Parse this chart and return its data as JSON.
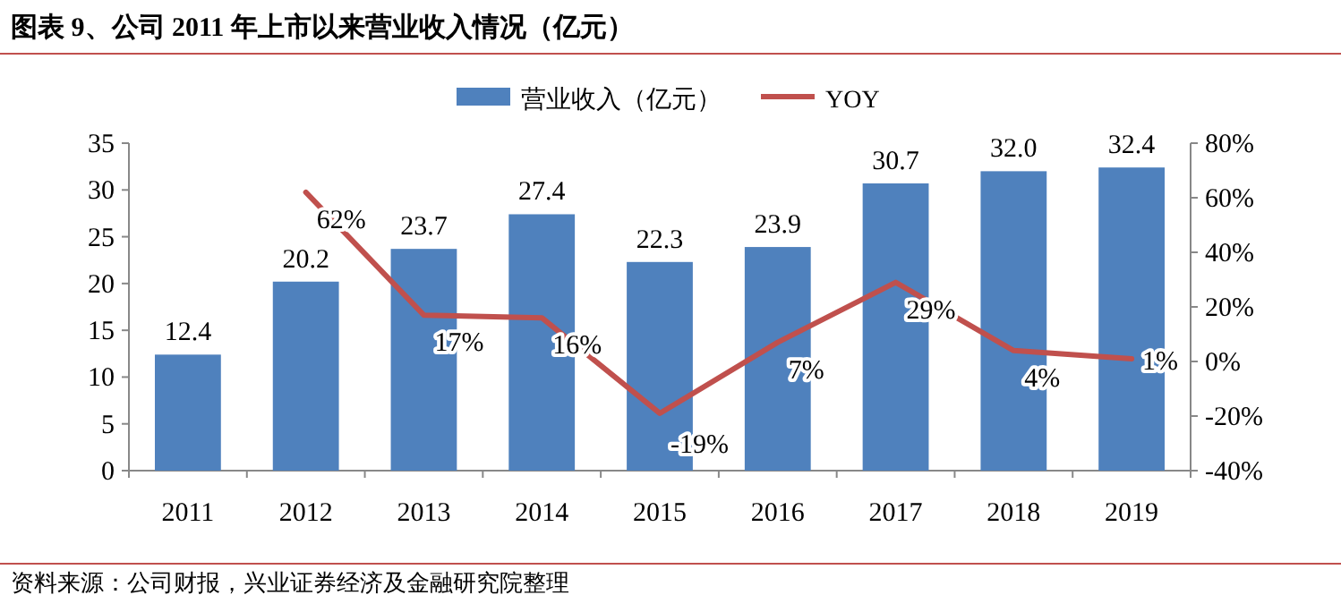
{
  "chart_data": {
    "type": "bar",
    "title": "图表 9、公司 2011 年上市以来营业收入情况（亿元）",
    "categories": [
      "2011",
      "2012",
      "2013",
      "2014",
      "2015",
      "2016",
      "2017",
      "2018",
      "2019"
    ],
    "series": [
      {
        "name": "营业收入（亿元）",
        "color": "#4f81bd",
        "values": [
          12.4,
          20.2,
          23.7,
          27.4,
          22.3,
          23.9,
          30.7,
          32.0,
          32.4
        ],
        "value_labels": [
          "12.4",
          "20.2",
          "23.7",
          "27.4",
          "22.3",
          "23.9",
          "30.7",
          "32.0",
          "32.4"
        ]
      },
      {
        "name": "YOY",
        "type": "line",
        "axis": "y2",
        "color": "#c0504d",
        "values": [
          null,
          62,
          17,
          16,
          -19,
          7,
          29,
          4,
          1
        ],
        "value_labels": [
          null,
          "62%",
          "17%",
          "16%",
          "-19%",
          "7%",
          "29%",
          "4%",
          "1%"
        ]
      }
    ],
    "ylim": [
      0,
      35
    ],
    "yticks": [
      0,
      5,
      10,
      15,
      20,
      25,
      30,
      35
    ],
    "y2lim": [
      -40,
      80
    ],
    "y2ticks": [
      {
        "value": -40,
        "label": "-40%"
      },
      {
        "value": -20,
        "label": "-20%"
      },
      {
        "value": 0,
        "label": "0%"
      },
      {
        "value": 20,
        "label": "20%"
      },
      {
        "value": 40,
        "label": "40%"
      },
      {
        "value": 60,
        "label": "60%"
      },
      {
        "value": 80,
        "label": "80%"
      }
    ],
    "legend": "top",
    "grid": false,
    "marker": "none",
    "line_style": "solid",
    "annotations": [
      "资料来源：公司财报，兴业证券经济及金融研究院整理"
    ]
  }
}
